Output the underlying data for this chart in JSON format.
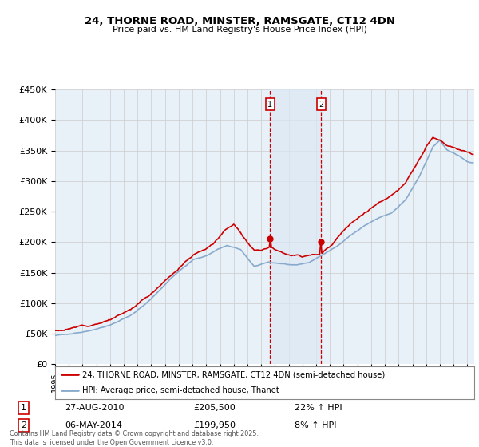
{
  "title": "24, THORNE ROAD, MINSTER, RAMSGATE, CT12 4DN",
  "subtitle": "Price paid vs. HM Land Registry's House Price Index (HPI)",
  "ylabel_ticks": [
    "£0",
    "£50K",
    "£100K",
    "£150K",
    "£200K",
    "£250K",
    "£300K",
    "£350K",
    "£400K",
    "£450K"
  ],
  "ytick_values": [
    0,
    50000,
    100000,
    150000,
    200000,
    250000,
    300000,
    350000,
    400000,
    450000
  ],
  "ylim": [
    0,
    450000
  ],
  "xlim_start": 1995.25,
  "xlim_end": 2025.5,
  "marker1_x": 2010.65,
  "marker1_y": 205500,
  "marker1_label": "1",
  "marker2_x": 2014.35,
  "marker2_y": 199950,
  "marker2_label": "2",
  "transaction1_date": "27-AUG-2010",
  "transaction1_price": "£205,500",
  "transaction1_hpi": "22% ↑ HPI",
  "transaction2_date": "06-MAY-2014",
  "transaction2_price": "£199,950",
  "transaction2_hpi": "8% ↑ HPI",
  "legend_label1": "24, THORNE ROAD, MINSTER, RAMSGATE, CT12 4DN (semi-detached house)",
  "legend_label2": "HPI: Average price, semi-detached house, Thanet",
  "footnote": "Contains HM Land Registry data © Crown copyright and database right 2025.\nThis data is licensed under the Open Government Licence v3.0.",
  "line1_color": "#cc0000",
  "line2_color": "#88aacc",
  "background_color": "#e8f0f8",
  "grid_color": "#cccccc",
  "marker_line_color": "#cc0000",
  "shade_color": "#dce8f4"
}
